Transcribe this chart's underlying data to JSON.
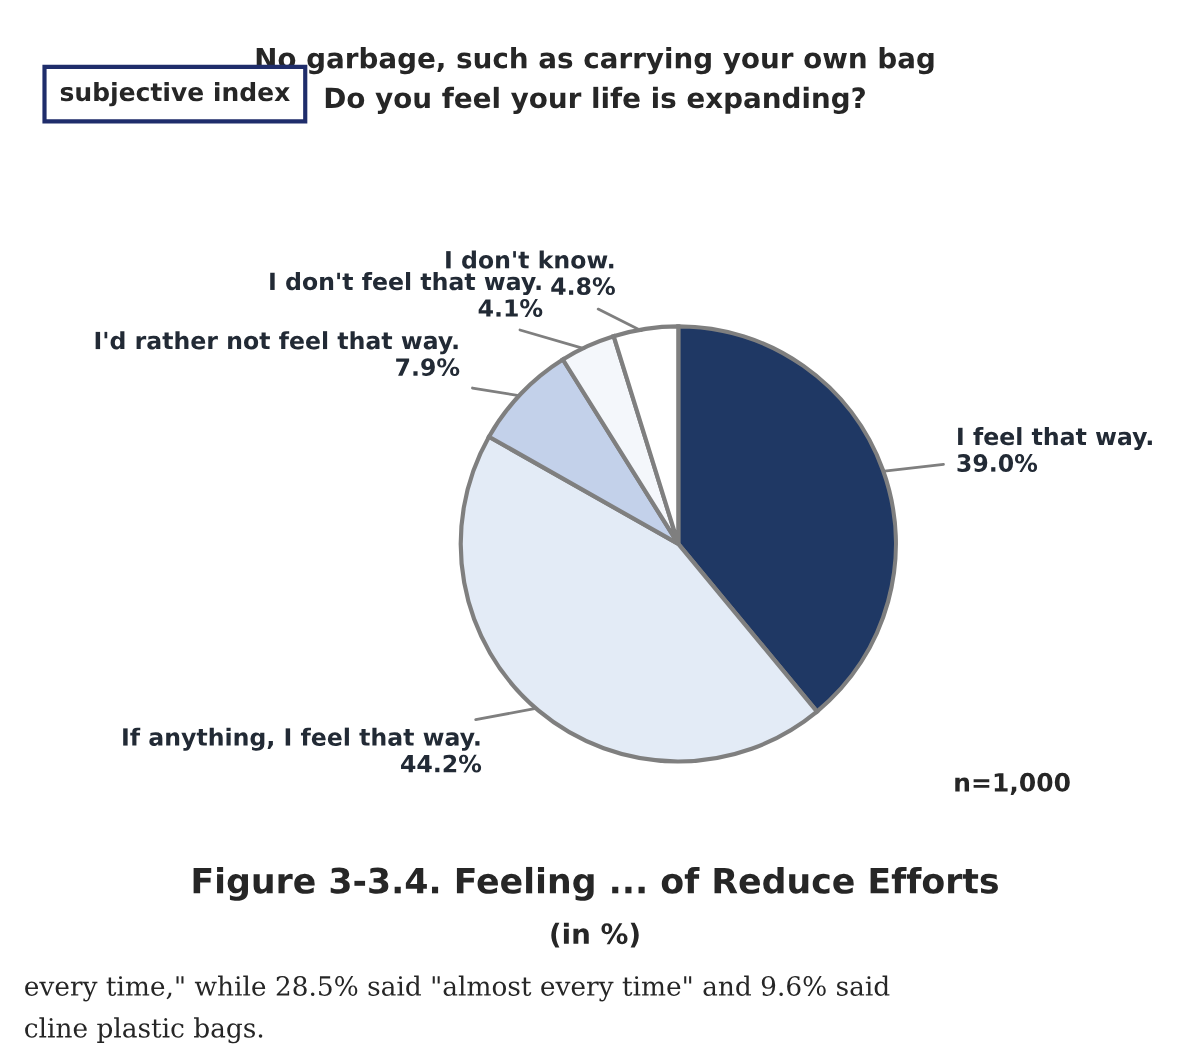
{
  "chart_data": {
    "type": "pie",
    "title": "Figure 3-3.4. Feeling ... of Reduce Efforts",
    "subtitle": "No garbage, such as carrying your own bag\nDo you feel your life is expanding?",
    "categories": [
      "I feel that way.",
      "If anything, I feel that way.",
      "I'd rather not feel that way.",
      "I don't feel that way.",
      "I don't know."
    ],
    "values": [
      39.0,
      44.2,
      7.9,
      4.1,
      4.8
    ],
    "value_labels": [
      "39.0%",
      "44.2%",
      "7.9%",
      "4.1%",
      "4.8%"
    ],
    "colors": [
      "#1f3864",
      "#e3ebf6",
      "#c3d1ea",
      "#f4f7fb",
      "#ffffff"
    ],
    "annotations": [
      "subjective index",
      "n=1,000",
      "(in %)",
      "every time,\" while 28.5% said \"almost every time\" and 9.6% said",
      "cline plastic bags."
    ],
    "legend": false
  }
}
